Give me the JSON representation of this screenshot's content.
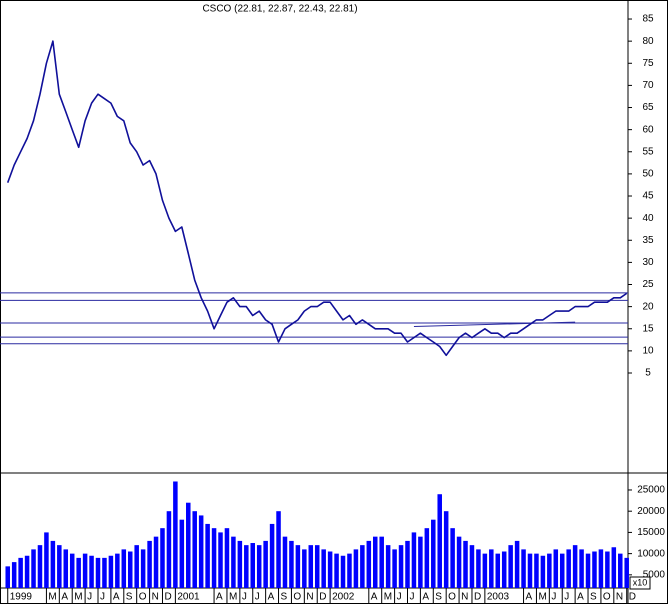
{
  "chart_data": [
    {
      "type": "line",
      "title": "CSCO (22.81, 22.87, 22.43, 22.81)",
      "x": [
        0,
        0.5,
        1,
        1.5,
        2,
        2.5,
        3,
        3.5,
        4,
        4.5,
        5,
        5.5,
        6,
        6.5,
        7,
        7.5,
        8,
        8.5,
        9,
        9.5,
        10,
        10.5,
        11,
        11.5,
        12,
        12.5,
        13,
        13.5,
        14,
        14.5,
        15,
        15.5,
        16,
        16.5,
        17,
        17.5,
        18,
        18.5,
        19,
        19.5,
        20,
        20.5,
        21,
        21.5,
        22,
        22.5,
        23,
        23.5,
        24,
        24.5,
        25,
        25.5,
        26,
        26.5,
        27,
        27.5,
        28,
        28.5,
        29,
        29.5,
        30,
        30.5,
        31,
        31.5,
        32,
        32.5,
        33,
        33.5,
        34,
        34.5,
        35,
        35.5,
        36,
        36.5,
        37,
        37.5,
        38,
        38.5,
        39,
        39.5,
        40,
        40.5,
        41,
        41.5,
        42,
        42.5,
        43,
        43.5,
        44,
        44.5,
        45,
        45.5,
        46,
        46.5,
        47,
        47.5,
        48
      ],
      "series": [
        {
          "name": "CSCO",
          "color": "#10109a",
          "values": [
            48,
            52,
            55,
            58,
            62,
            68,
            75,
            80,
            68,
            64,
            60,
            56,
            62,
            66,
            68,
            67,
            66,
            63,
            62,
            57,
            55,
            52,
            53,
            50,
            44,
            40,
            37,
            38,
            32,
            26,
            22,
            19,
            15,
            18,
            21,
            22,
            20,
            20,
            18,
            19,
            17,
            16,
            12,
            15,
            16,
            17,
            19,
            20,
            20,
            21,
            21,
            19,
            17,
            18,
            16,
            17,
            16,
            15,
            15,
            15,
            14,
            14,
            12,
            13,
            14,
            13,
            12,
            11,
            9,
            11,
            13,
            14,
            13,
            14,
            15,
            14,
            14,
            13,
            14,
            14,
            15,
            16,
            17,
            17,
            18,
            19,
            19,
            19,
            20,
            20,
            20,
            21,
            21,
            21,
            22,
            22,
            23
          ]
        }
      ],
      "hlines": [
        23.1,
        21.4,
        16.3,
        13.1,
        11.6
      ],
      "trendlines": [
        {
          "x": [
            31.5,
            44
          ],
          "y": [
            15.5,
            16.5
          ]
        }
      ],
      "line_color": "#2a2aa0",
      "xlim": [
        -0.6,
        48.1
      ],
      "ylim": [
        -17.6,
        89.3
      ],
      "yticks": [
        5,
        10,
        15,
        20,
        25,
        30,
        35,
        40,
        45,
        50,
        55,
        60,
        65,
        70,
        75,
        80,
        85
      ]
    },
    {
      "type": "bar",
      "ylabel": "x10",
      "x": [
        0,
        0.5,
        1,
        1.5,
        2,
        2.5,
        3,
        3.5,
        4,
        4.5,
        5,
        5.5,
        6,
        6.5,
        7,
        7.5,
        8,
        8.5,
        9,
        9.5,
        10,
        10.5,
        11,
        11.5,
        12,
        12.5,
        13,
        13.5,
        14,
        14.5,
        15,
        15.5,
        16,
        16.5,
        17,
        17.5,
        18,
        18.5,
        19,
        19.5,
        20,
        20.5,
        21,
        21.5,
        22,
        22.5,
        23,
        23.5,
        24,
        24.5,
        25,
        25.5,
        26,
        26.5,
        27,
        27.5,
        28,
        28.5,
        29,
        29.5,
        30,
        30.5,
        31,
        31.5,
        32,
        32.5,
        33,
        33.5,
        34,
        34.5,
        35,
        35.5,
        36,
        36.5,
        37,
        37.5,
        38,
        38.5,
        39,
        39.5,
        40,
        40.5,
        41,
        41.5,
        42,
        42.5,
        43,
        43.5,
        44,
        44.5,
        45,
        45.5,
        46,
        46.5,
        47,
        47.5,
        48
      ],
      "values": [
        7000,
        8000,
        9000,
        9500,
        11000,
        12000,
        15000,
        13000,
        12000,
        11000,
        10000,
        9000,
        10000,
        9500,
        9000,
        9000,
        9500,
        10000,
        11000,
        10500,
        12000,
        11000,
        13000,
        14000,
        16000,
        20000,
        27000,
        18000,
        22000,
        20000,
        19000,
        17000,
        16000,
        15000,
        16000,
        14000,
        13000,
        12000,
        12500,
        12000,
        13000,
        17000,
        20000,
        14000,
        13000,
        12000,
        11000,
        12000,
        12000,
        11000,
        10500,
        10000,
        9500,
        10000,
        11000,
        12000,
        13000,
        14000,
        14000,
        12000,
        11000,
        12000,
        13000,
        15000,
        14000,
        16000,
        18000,
        24000,
        20000,
        16000,
        14000,
        13000,
        12000,
        11000,
        10000,
        11000,
        10000,
        10500,
        12000,
        13000,
        11000,
        10000,
        10000,
        9500,
        10000,
        11000,
        10000,
        11000,
        12000,
        11000,
        10000,
        10500,
        11000,
        10500,
        11500,
        10000,
        9000
      ],
      "color": "#0000ff",
      "xlim": [
        -0.6,
        48.1
      ],
      "ylim": [
        1900,
        29000
      ],
      "yticks": [
        5000,
        10000,
        15000,
        20000,
        25000
      ],
      "xticks": [
        {
          "value": 0,
          "label": "1999"
        },
        {
          "value": 3,
          "label": "M"
        },
        {
          "value": 4,
          "label": "A"
        },
        {
          "value": 5,
          "label": "M"
        },
        {
          "value": 6,
          "label": "J"
        },
        {
          "value": 7,
          "label": "J"
        },
        {
          "value": 8,
          "label": "A"
        },
        {
          "value": 9,
          "label": "S"
        },
        {
          "value": 10,
          "label": "O"
        },
        {
          "value": 11,
          "label": "N"
        },
        {
          "value": 12,
          "label": "D"
        },
        {
          "value": 13,
          "label": "2001"
        },
        {
          "value": 16,
          "label": "A"
        },
        {
          "value": 17,
          "label": "M"
        },
        {
          "value": 18,
          "label": "J"
        },
        {
          "value": 19,
          "label": "J"
        },
        {
          "value": 20,
          "label": "A"
        },
        {
          "value": 21,
          "label": "S"
        },
        {
          "value": 22,
          "label": "O"
        },
        {
          "value": 23,
          "label": "N"
        },
        {
          "value": 24,
          "label": "D"
        },
        {
          "value": 25,
          "label": "2002"
        },
        {
          "value": 28,
          "label": "A"
        },
        {
          "value": 29,
          "label": "M"
        },
        {
          "value": 30,
          "label": "J"
        },
        {
          "value": 31,
          "label": "J"
        },
        {
          "value": 32,
          "label": "A"
        },
        {
          "value": 33,
          "label": "S"
        },
        {
          "value": 34,
          "label": "O"
        },
        {
          "value": 35,
          "label": "N"
        },
        {
          "value": 36,
          "label": "D"
        },
        {
          "value": 37,
          "label": "2003"
        },
        {
          "value": 40,
          "label": "A"
        },
        {
          "value": 41,
          "label": "M"
        },
        {
          "value": 42,
          "label": "J"
        },
        {
          "value": 43,
          "label": "J"
        },
        {
          "value": 44,
          "label": "A"
        },
        {
          "value": 45,
          "label": "S"
        },
        {
          "value": 46,
          "label": "O"
        },
        {
          "value": 47,
          "label": "N"
        },
        {
          "value": 48,
          "label": "D"
        }
      ]
    }
  ]
}
